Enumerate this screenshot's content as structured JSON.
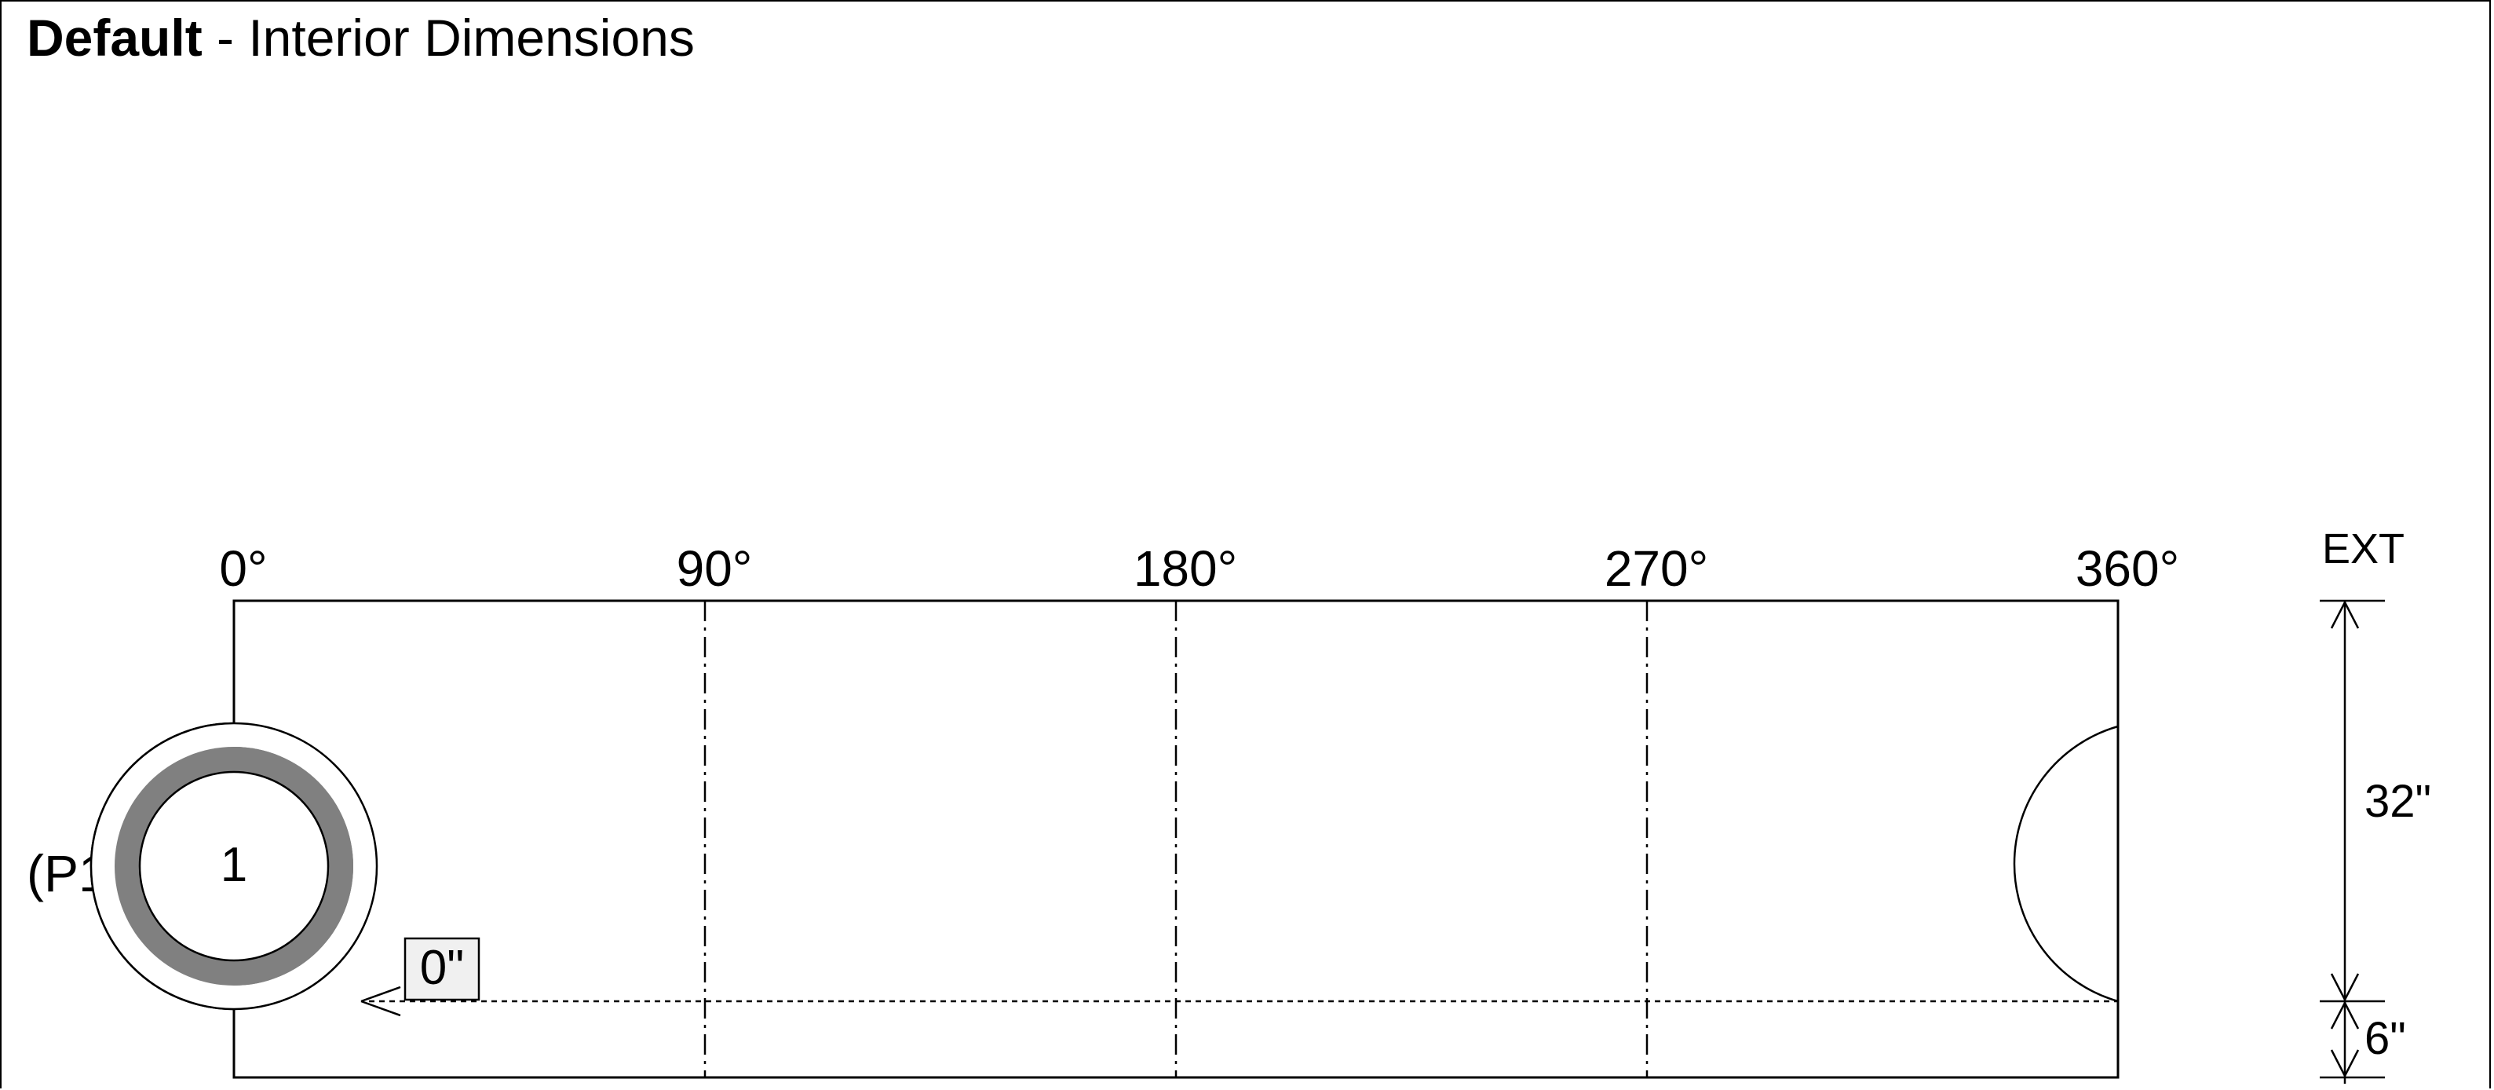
{
  "title": {
    "name": "Default",
    "separator": " - ",
    "subtitle": "Interior Dimensions"
  },
  "angles": [
    "0°",
    "90°",
    "180°",
    "270°",
    "360°"
  ],
  "penetration": {
    "number": "1",
    "tag": "(P1",
    "offset_label": "0\""
  },
  "dimensions": {
    "ext_label": "EXT",
    "height": "32\"",
    "bottom": "6\""
  },
  "colors": {
    "line": "#000000",
    "ring": "#808080",
    "label_box": "#f0f0f0"
  }
}
